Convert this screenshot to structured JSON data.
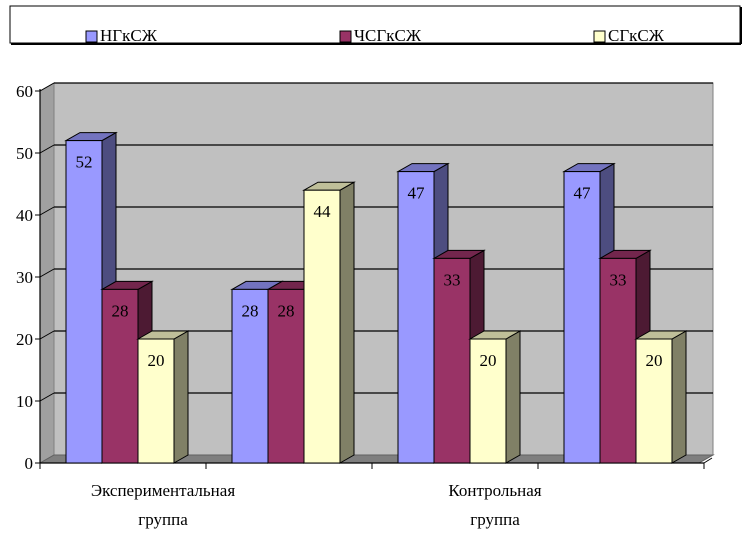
{
  "chart_data": {
    "type": "bar",
    "style": "3d-clustered-column",
    "categories": [
      "Экспериментальная группа",
      "",
      "Контрольная группа",
      ""
    ],
    "category_label_lines": [
      [
        "Экспериментальная",
        "группа"
      ],
      [],
      [
        "Контрольная",
        "группа"
      ],
      []
    ],
    "series": [
      {
        "name": "НГкСЖ",
        "values": [
          52,
          28,
          47,
          47
        ],
        "color": "#9999ff"
      },
      {
        "name": "ЧСГкСЖ",
        "values": [
          28,
          28,
          33,
          33
        ],
        "color": "#993366"
      },
      {
        "name": "СГкСЖ",
        "values": [
          20,
          44,
          20,
          20
        ],
        "color": "#ffffcc"
      }
    ],
    "data_labels": true,
    "ylim": [
      0,
      60
    ],
    "yticks": [
      0,
      10,
      20,
      30,
      40,
      50,
      60
    ],
    "grid": true,
    "plot_background": "#c0c0c0",
    "legend_position": "top"
  }
}
